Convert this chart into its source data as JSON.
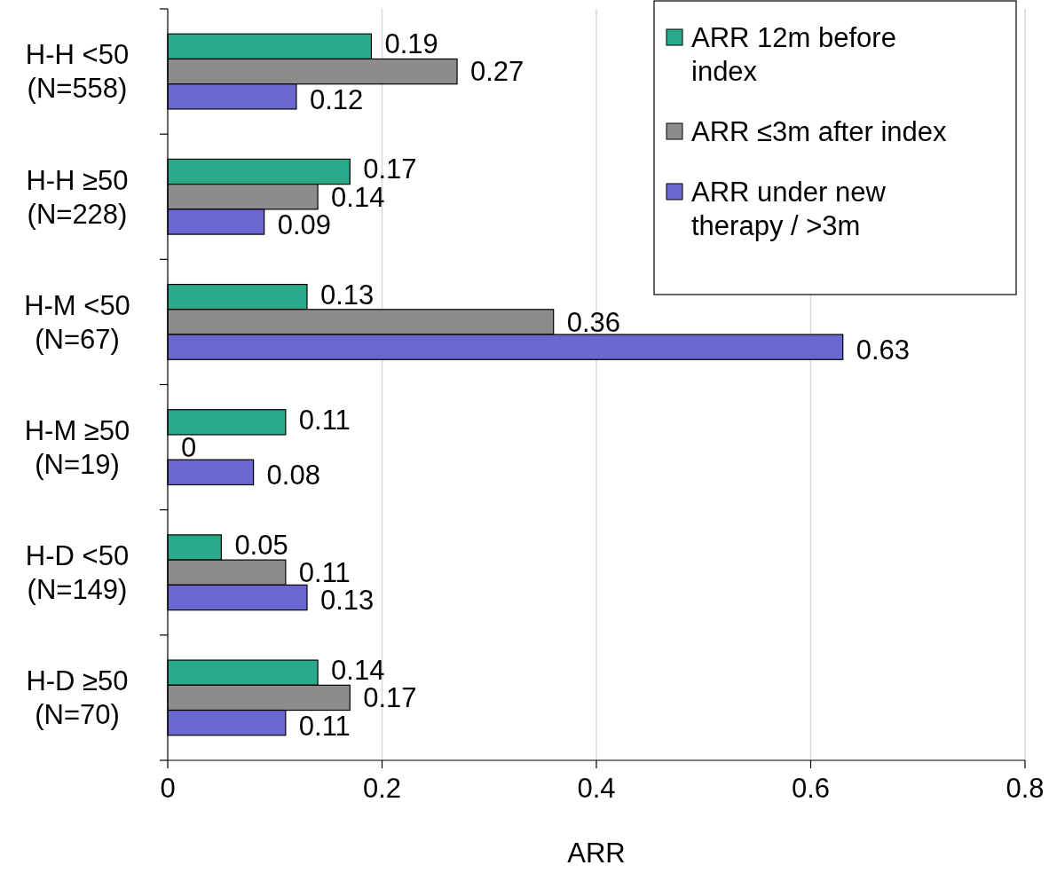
{
  "chart_data": {
    "type": "bar",
    "orientation": "horizontal",
    "xlabel": "ARR",
    "categories": [
      "H-H <50 (N=558)",
      "H-H ≥50 (N=228)",
      "H-M <50 (N=67)",
      "H-M ≥50 (N=19)",
      "H-D <50 (N=149)",
      "H-D ≥50 (N=70)"
    ],
    "series": [
      {
        "name": "ARR 12m before index",
        "color": "#2aaa8a",
        "values": [
          0.19,
          0.17,
          0.13,
          0.11,
          0.05,
          0.14
        ]
      },
      {
        "name": "ARR ≤3m after index",
        "color": "#8c8c8c",
        "values": [
          0.27,
          0.14,
          0.36,
          0,
          0.11,
          0.17
        ]
      },
      {
        "name": "ARR under new therapy / >3m",
        "color": "#6a67d0",
        "values": [
          0.12,
          0.09,
          0.63,
          0.08,
          0.13,
          0.11
        ]
      }
    ],
    "xlim": [
      0,
      0.8
    ],
    "xticks": [
      0,
      0.2,
      0.4,
      0.6,
      0.8
    ],
    "grid": "x",
    "legend": "top right",
    "data_labels": true
  }
}
